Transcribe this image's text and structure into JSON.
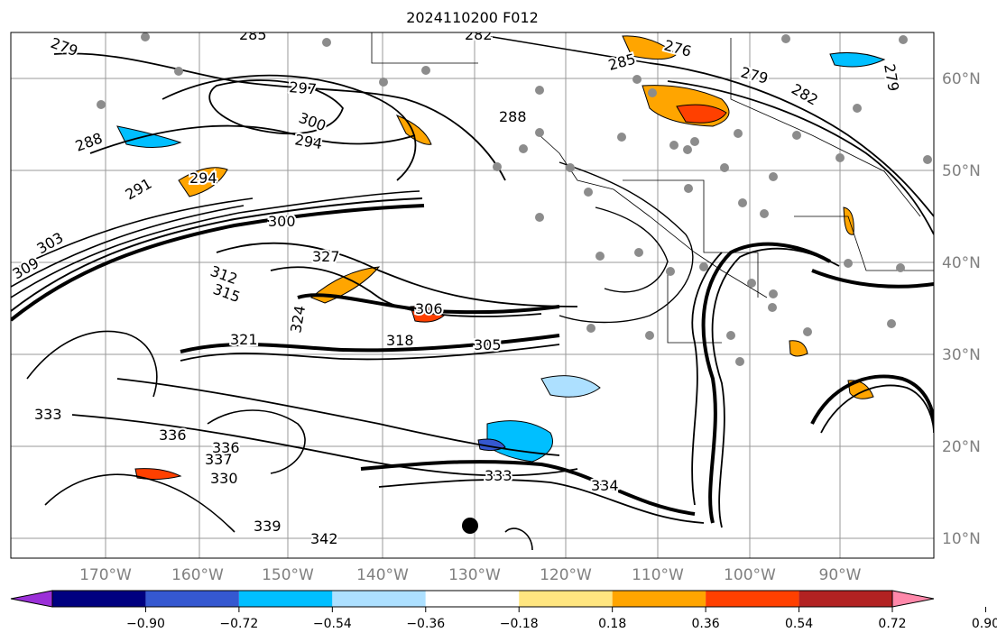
{
  "title": "2024110200 F012",
  "latitude_labels": [
    "10°N",
    "20°N",
    "30°N",
    "40°N",
    "50°N",
    "60°N"
  ],
  "longitude_labels": [
    "170°W",
    "160°W",
    "150°W",
    "140°W",
    "130°W",
    "120°W",
    "110°W",
    "100°W",
    "90°W"
  ],
  "colorbar": {
    "colors": [
      "#9b30d8",
      "#000080",
      "#3558d0",
      "#00bfff",
      "#ade0ff",
      "#ffffff",
      "#ffe680",
      "#ffa500",
      "#ff4000",
      "#b22222",
      "#ff88aa"
    ],
    "tick_labels": [
      "−0.90",
      "−0.72",
      "−0.54",
      "−0.36",
      "−0.18",
      "0.18",
      "0.36",
      "0.54",
      "0.72",
      "0.90"
    ]
  },
  "contour_labels": [
    "279",
    "285",
    "282",
    "276",
    "279",
    "285",
    "282",
    "279",
    "297",
    "300",
    "294",
    "288",
    "288",
    "291",
    "294",
    "300",
    "303",
    "309",
    "327",
    "312",
    "315",
    "324",
    "306",
    "318",
    "305",
    "321",
    "333",
    "336",
    "339",
    "342",
    "330",
    "333",
    "337",
    "334",
    "336"
  ]
}
